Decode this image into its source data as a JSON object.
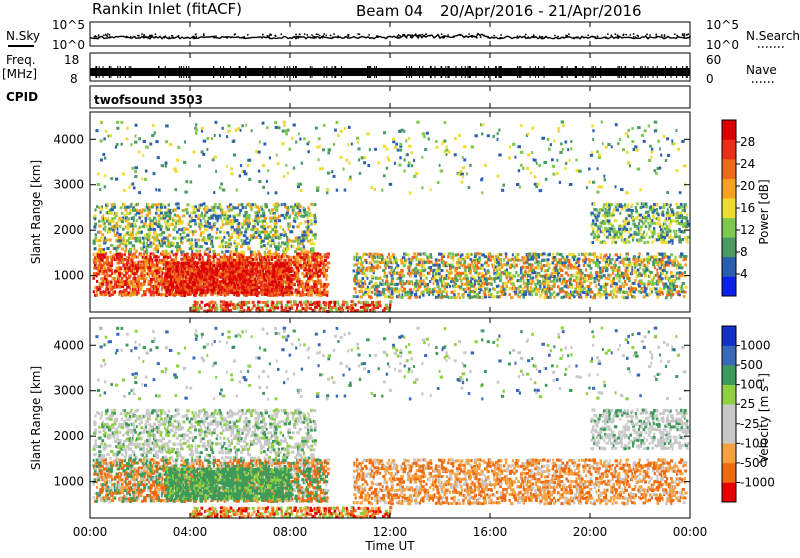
{
  "header": {
    "station": "Rankin Inlet (fitACF)",
    "beam": "Beam 04",
    "date_range": "20/Apr/2016 - 21/Apr/2016"
  },
  "colors": {
    "power": [
      "#0a20e6",
      "#2a5fb0",
      "#4a9a62",
      "#7ec850",
      "#f0dc30",
      "#f6a020",
      "#ee6a1a",
      "#e83018",
      "#dc0000"
    ],
    "velocity": [
      "#e80000",
      "#ee6a10",
      "#f6a040",
      "#c8c8c8",
      "#c8c8c8",
      "#8ed040",
      "#3e9a5a",
      "#3a68b8",
      "#1030c8"
    ]
  },
  "chart_data": [
    {
      "panel": "noise",
      "type": "line",
      "left_label": "N.Sky",
      "right_label": "N.Search",
      "left_ticks": [
        "10^5",
        "10^0"
      ],
      "right_ticks": [
        "10^5",
        "10^0"
      ],
      "scale": "log",
      "ylim": [
        1,
        100000
      ]
    },
    {
      "panel": "frequency",
      "type": "line",
      "left_label": "Freq.",
      "left_unit": "[MHz]",
      "right_label": "Nave",
      "left_ticks": [
        "18",
        "8"
      ],
      "right_ticks": [
        "60",
        "0"
      ]
    },
    {
      "panel": "cpid",
      "type": "table",
      "label": "CPID",
      "value": "twofsound 3503"
    },
    {
      "panel": "power",
      "type": "heatmap",
      "ylabel": "Slant Range [km]",
      "yticks": [
        "4000",
        "3000",
        "2000",
        "1000"
      ],
      "ylim": [
        200,
        4600
      ],
      "xlim_hours": [
        0,
        24
      ],
      "colorbar_label": "Power [dB]",
      "colorbar_ticks": [
        "28",
        "24",
        "20",
        "16",
        "12",
        "8",
        "4"
      ]
    },
    {
      "panel": "velocity",
      "type": "heatmap",
      "ylabel": "Slant Range [km]",
      "yticks": [
        "4000",
        "3000",
        "2000",
        "1000"
      ],
      "ylim": [
        200,
        4600
      ],
      "xlim_hours": [
        0,
        24
      ],
      "colorbar_label": "Velocity [m s^-1]",
      "colorbar_ticks": [
        "1000",
        "500",
        "100",
        "25",
        "-25",
        "-100",
        "-500",
        "-1000"
      ]
    }
  ],
  "x_axis": {
    "label": "Time UT",
    "ticks": [
      "00:00",
      "04:00",
      "08:00",
      "12:00",
      "16:00",
      "20:00",
      "00:00"
    ]
  }
}
